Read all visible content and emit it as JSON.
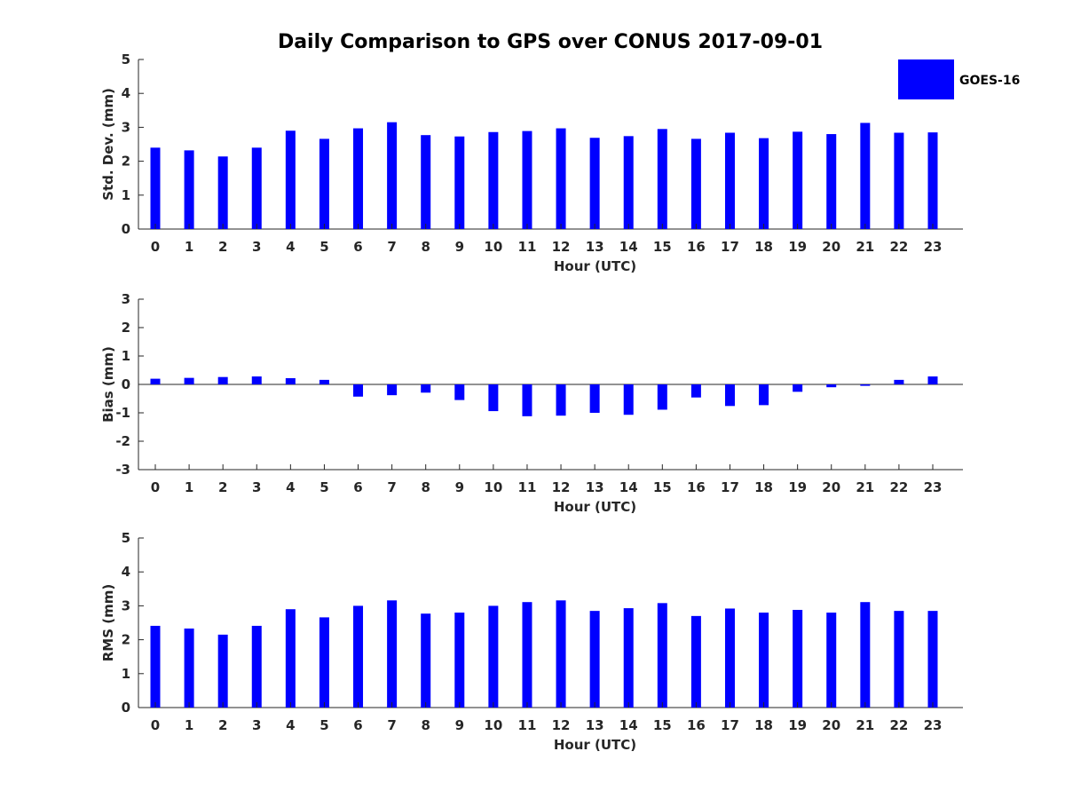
{
  "chart_data": {
    "type": "bar",
    "title": "Daily Comparison to GPS over CONUS 2017-09-01",
    "legend": {
      "label": "GOES-16",
      "color": "#0000ff",
      "placement": "top-right"
    },
    "panels": [
      {
        "type": "bar",
        "ylabel": "Std. Dev. (mm)",
        "xlabel": "Hour (UTC)",
        "ylim": [
          0,
          5
        ],
        "yticks": [
          "0",
          "1",
          "2",
          "3",
          "4",
          "5"
        ],
        "categories": [
          "0",
          "1",
          "2",
          "3",
          "4",
          "5",
          "6",
          "7",
          "8",
          "9",
          "10",
          "11",
          "12",
          "13",
          "14",
          "15",
          "16",
          "17",
          "18",
          "19",
          "20",
          "21",
          "22",
          "23"
        ],
        "series": [
          {
            "name": "GOES-16",
            "color": "#0000ff",
            "values": [
              2.4,
              2.32,
              2.14,
              2.4,
              2.9,
              2.66,
              2.97,
              3.15,
              2.77,
              2.73,
              2.86,
              2.89,
              2.97,
              2.69,
              2.74,
              2.95,
              2.66,
              2.84,
              2.68,
              2.87,
              2.8,
              3.13,
              2.84,
              2.85
            ]
          }
        ]
      },
      {
        "type": "bar",
        "ylabel": "Bias (mm)",
        "xlabel": "Hour (UTC)",
        "ylim": [
          -3,
          3
        ],
        "yticks": [
          "-3",
          "-2",
          "-1",
          "0",
          "1",
          "2",
          "3"
        ],
        "categories": [
          "0",
          "1",
          "2",
          "3",
          "4",
          "5",
          "6",
          "7",
          "8",
          "9",
          "10",
          "11",
          "12",
          "13",
          "14",
          "15",
          "16",
          "17",
          "18",
          "19",
          "20",
          "21",
          "22",
          "23"
        ],
        "series": [
          {
            "name": "GOES-16",
            "color": "#0000ff",
            "values": [
              0.2,
              0.23,
              0.26,
              0.28,
              0.22,
              0.16,
              -0.43,
              -0.38,
              -0.29,
              -0.55,
              -0.94,
              -1.12,
              -1.1,
              -1.0,
              -1.07,
              -0.89,
              -0.46,
              -0.76,
              -0.73,
              -0.26,
              -0.1,
              -0.05,
              0.16,
              0.28
            ]
          }
        ]
      },
      {
        "type": "bar",
        "ylabel": "RMS (mm)",
        "xlabel": "Hour (UTC)",
        "ylim": [
          0,
          5
        ],
        "yticks": [
          "0",
          "1",
          "2",
          "3",
          "4",
          "5"
        ],
        "categories": [
          "0",
          "1",
          "2",
          "3",
          "4",
          "5",
          "6",
          "7",
          "8",
          "9",
          "10",
          "11",
          "12",
          "13",
          "14",
          "15",
          "16",
          "17",
          "18",
          "19",
          "20",
          "21",
          "22",
          "23"
        ],
        "series": [
          {
            "name": "GOES-16",
            "color": "#0000ff",
            "values": [
              2.41,
              2.33,
              2.15,
              2.41,
              2.9,
              2.66,
              3.0,
              3.16,
              2.77,
              2.8,
              3.0,
              3.11,
              3.16,
              2.85,
              2.93,
              3.08,
              2.7,
              2.92,
              2.8,
              2.88,
              2.8,
              3.11,
              2.85,
              2.85
            ]
          }
        ]
      }
    ]
  }
}
